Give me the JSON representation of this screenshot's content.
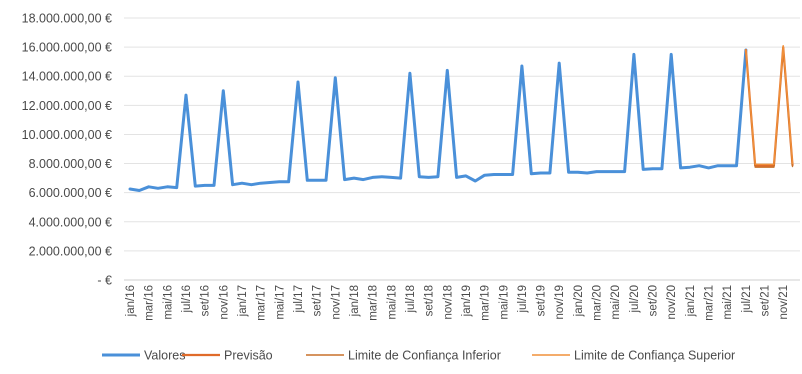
{
  "chart_data": {
    "type": "line",
    "ylim": [
      0,
      18000000
    ],
    "yticks": [
      0,
      2000000,
      4000000,
      6000000,
      8000000,
      10000000,
      12000000,
      14000000,
      16000000,
      18000000
    ],
    "ytick_labels": [
      "-   €",
      "2.000.000,00 €",
      "4.000.000,00 €",
      "6.000.000,00 €",
      "8.000.000,00 €",
      "10.000.000,00 €",
      "12.000.000,00 €",
      "14.000.000,00 €",
      "16.000.000,00 €",
      "18.000.000,00 €"
    ],
    "grid": true,
    "legend_position": "bottom",
    "x": [
      "jan/16",
      "fev/16",
      "mar/16",
      "abr/16",
      "mai/16",
      "jun/16",
      "jul/16",
      "ago/16",
      "set/16",
      "out/16",
      "nov/16",
      "dez/16",
      "jan/17",
      "fev/17",
      "mar/17",
      "abr/17",
      "mai/17",
      "jun/17",
      "jul/17",
      "ago/17",
      "set/17",
      "out/17",
      "nov/17",
      "dez/17",
      "jan/18",
      "fev/18",
      "mar/18",
      "abr/18",
      "mai/18",
      "jun/18",
      "jul/18",
      "ago/18",
      "set/18",
      "out/18",
      "nov/18",
      "dez/18",
      "jan/19",
      "fev/19",
      "mar/19",
      "abr/19",
      "mai/19",
      "jun/19",
      "jul/19",
      "ago/19",
      "set/19",
      "out/19",
      "nov/19",
      "dez/19",
      "jan/20",
      "fev/20",
      "mar/20",
      "abr/20",
      "mai/20",
      "jun/20",
      "jul/20",
      "ago/20",
      "set/20",
      "out/20",
      "nov/20",
      "dez/20",
      "jan/21",
      "fev/21",
      "mar/21",
      "abr/21",
      "mai/21",
      "jun/21",
      "jul/21",
      "ago/21",
      "set/21",
      "out/21",
      "nov/21",
      "dez/21"
    ],
    "x_tick_labels": [
      "jan/16",
      "mar/16",
      "mai/16",
      "jul/16",
      "set/16",
      "nov/16",
      "jan/17",
      "mar/17",
      "mai/17",
      "jul/17",
      "set/17",
      "nov/17",
      "jan/18",
      "mar/18",
      "mai/18",
      "jul/18",
      "set/18",
      "nov/18",
      "jan/19",
      "mar/19",
      "mai/19",
      "jul/19",
      "set/19",
      "nov/19",
      "jan/20",
      "mar/20",
      "mai/20",
      "jul/20",
      "set/20",
      "nov/20",
      "jan/21",
      "mar/21",
      "mai/21",
      "jul/21",
      "set/21",
      "nov/21"
    ],
    "series": [
      {
        "name": "Valores",
        "color": "#4a90d9",
        "values": [
          6250000,
          6150000,
          6400000,
          6300000,
          6400000,
          6350000,
          12700000,
          6450000,
          6500000,
          6500000,
          13000000,
          6550000,
          6650000,
          6550000,
          6650000,
          6700000,
          6750000,
          6750000,
          13600000,
          6850000,
          6850000,
          6850000,
          13900000,
          6900000,
          7000000,
          6900000,
          7050000,
          7100000,
          7050000,
          7000000,
          14200000,
          7100000,
          7050000,
          7100000,
          14400000,
          7050000,
          7150000,
          6800000,
          7200000,
          7250000,
          7250000,
          7250000,
          14700000,
          7300000,
          7350000,
          7350000,
          14900000,
          7400000,
          7400000,
          7350000,
          7450000,
          7450000,
          7450000,
          7450000,
          15500000,
          7600000,
          7650000,
          7650000,
          15500000,
          7700000,
          7750000,
          7850000,
          7700000,
          7850000,
          7850000,
          7850000,
          15800000,
          null,
          null,
          null,
          null,
          null
        ]
      },
      {
        "name": "Previsão",
        "color": "#e06b2a",
        "values": [
          null,
          null,
          null,
          null,
          null,
          null,
          null,
          null,
          null,
          null,
          null,
          null,
          null,
          null,
          null,
          null,
          null,
          null,
          null,
          null,
          null,
          null,
          null,
          null,
          null,
          null,
          null,
          null,
          null,
          null,
          null,
          null,
          null,
          null,
          null,
          null,
          null,
          null,
          null,
          null,
          null,
          null,
          null,
          null,
          null,
          null,
          null,
          null,
          null,
          null,
          null,
          null,
          null,
          null,
          null,
          null,
          null,
          null,
          null,
          null,
          null,
          null,
          null,
          null,
          null,
          null,
          15800000,
          7850000,
          7850000,
          7850000,
          16000000,
          7900000
        ]
      },
      {
        "name": "Limite de Confiança Inferior",
        "color": "#c8702a",
        "values": [
          null,
          null,
          null,
          null,
          null,
          null,
          null,
          null,
          null,
          null,
          null,
          null,
          null,
          null,
          null,
          null,
          null,
          null,
          null,
          null,
          null,
          null,
          null,
          null,
          null,
          null,
          null,
          null,
          null,
          null,
          null,
          null,
          null,
          null,
          null,
          null,
          null,
          null,
          null,
          null,
          null,
          null,
          null,
          null,
          null,
          null,
          null,
          null,
          null,
          null,
          null,
          null,
          null,
          null,
          null,
          null,
          null,
          null,
          null,
          null,
          null,
          null,
          null,
          null,
          null,
          null,
          15800000,
          7750000,
          7750000,
          7750000,
          15900000,
          7800000
        ]
      },
      {
        "name": "Limite de Confiança Superior",
        "color": "#f0903a",
        "values": [
          null,
          null,
          null,
          null,
          null,
          null,
          null,
          null,
          null,
          null,
          null,
          null,
          null,
          null,
          null,
          null,
          null,
          null,
          null,
          null,
          null,
          null,
          null,
          null,
          null,
          null,
          null,
          null,
          null,
          null,
          null,
          null,
          null,
          null,
          null,
          null,
          null,
          null,
          null,
          null,
          null,
          null,
          null,
          null,
          null,
          null,
          null,
          null,
          null,
          null,
          null,
          null,
          null,
          null,
          null,
          null,
          null,
          null,
          null,
          null,
          null,
          null,
          null,
          null,
          null,
          null,
          15800000,
          7950000,
          7950000,
          7950000,
          16100000,
          8000000
        ]
      }
    ]
  }
}
